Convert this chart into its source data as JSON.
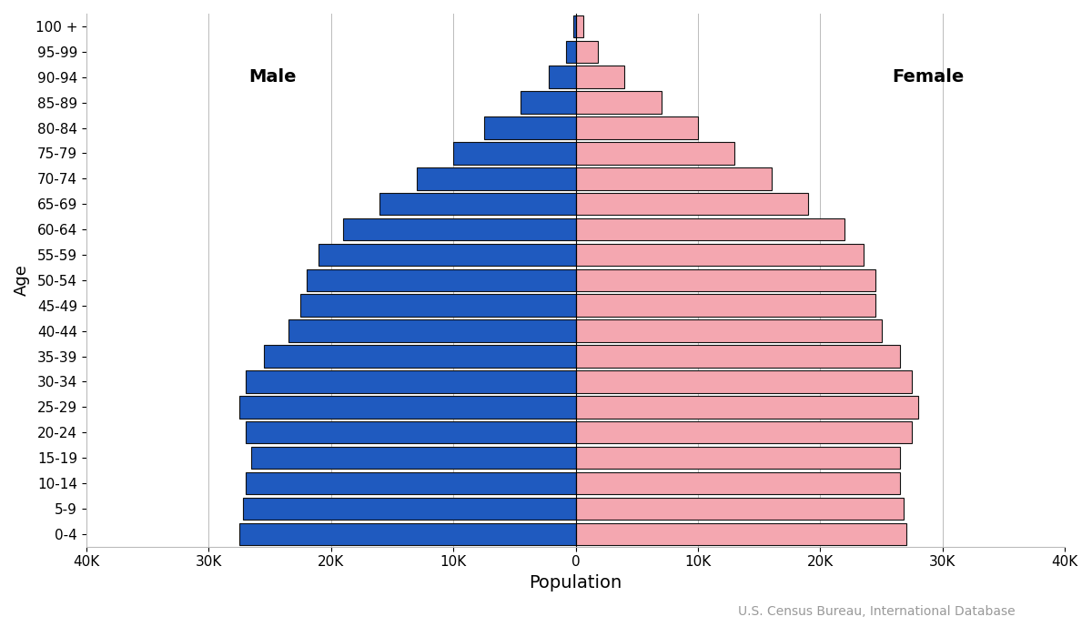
{
  "age_groups": [
    "0-4",
    "5-9",
    "10-14",
    "15-19",
    "20-24",
    "25-29",
    "30-34",
    "35-39",
    "40-44",
    "45-49",
    "50-54",
    "55-59",
    "60-64",
    "65-69",
    "70-74",
    "75-79",
    "80-84",
    "85-89",
    "90-94",
    "95-99",
    "100 +"
  ],
  "male": [
    27500,
    27200,
    27000,
    26500,
    27000,
    27500,
    27000,
    25500,
    23500,
    22500,
    22000,
    21000,
    19000,
    16000,
    13000,
    10000,
    7500,
    4500,
    2200,
    800,
    200
  ],
  "female": [
    27000,
    26800,
    26500,
    26500,
    27500,
    28000,
    27500,
    26500,
    25000,
    24500,
    24500,
    23500,
    22000,
    19000,
    16000,
    13000,
    10000,
    7000,
    4000,
    1800,
    600
  ],
  "male_color": "#1f5abf",
  "female_color": "#f4a7b0",
  "bar_edgecolor": "#111111",
  "bar_linewidth": 0.8,
  "xlim": 40000,
  "xlabel": "Population",
  "ylabel": "Age",
  "male_label": "Male",
  "female_label": "Female",
  "xtick_values": [
    -40000,
    -30000,
    -20000,
    -10000,
    0,
    10000,
    20000,
    30000,
    40000
  ],
  "xtick_labels": [
    "40K",
    "30K",
    "20K",
    "10K",
    "0",
    "10K",
    "20K",
    "30K",
    "40K"
  ],
  "grid_color": "#bbbbbb",
  "background_color": "#ffffff",
  "annotation": "U.S. Census Bureau, International Database",
  "annotation_color": "#999999",
  "annotation_fontsize": 10,
  "label_fontsize": 14,
  "tick_fontsize": 11,
  "ylabel_fontsize": 13,
  "male_label_fontsize": 14,
  "female_label_fontsize": 14
}
